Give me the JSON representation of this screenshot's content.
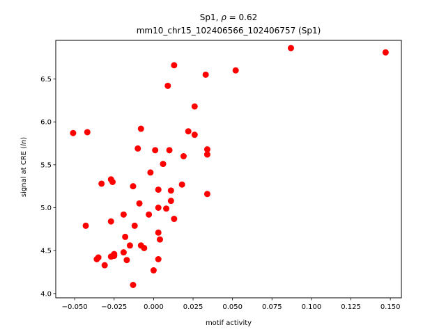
{
  "chart_data": {
    "type": "scatter",
    "title_line1": "Sp1, ",
    "title_rho": "ρ",
    "title_value": " = 0.62",
    "title_line2": "mm10_chr15_102406566_102406757 (Sp1)",
    "xlabel": "motif activity",
    "ylabel_prefix": "signal at CRE (",
    "ylabel_italic": "ln",
    "ylabel_suffix": ")",
    "xlim": [
      -0.062,
      0.157
    ],
    "ylim": [
      3.95,
      6.95
    ],
    "xticks": [
      -0.05,
      -0.025,
      0.0,
      0.025,
      0.05,
      0.075,
      0.1,
      0.125,
      0.15
    ],
    "xtick_labels": [
      "−0.050",
      "−0.025",
      "0.000",
      "0.025",
      "0.050",
      "0.075",
      "0.100",
      "0.125",
      "0.150"
    ],
    "yticks": [
      4.0,
      4.5,
      5.0,
      5.5,
      6.0,
      6.5
    ],
    "ytick_labels": [
      "4.0",
      "4.5",
      "5.0",
      "5.5",
      "6.0",
      "6.5"
    ],
    "marker_color": "#ff0000",
    "points": [
      {
        "x": -0.051,
        "y": 5.87
      },
      {
        "x": -0.042,
        "y": 5.88
      },
      {
        "x": -0.043,
        "y": 4.79
      },
      {
        "x": -0.036,
        "y": 4.4
      },
      {
        "x": -0.035,
        "y": 4.42
      },
      {
        "x": -0.033,
        "y": 5.28
      },
      {
        "x": -0.031,
        "y": 4.33
      },
      {
        "x": -0.027,
        "y": 5.33
      },
      {
        "x": -0.026,
        "y": 5.3
      },
      {
        "x": -0.027,
        "y": 4.84
      },
      {
        "x": -0.027,
        "y": 4.43
      },
      {
        "x": -0.025,
        "y": 4.44
      },
      {
        "x": -0.025,
        "y": 4.46
      },
      {
        "x": -0.019,
        "y": 4.48
      },
      {
        "x": -0.019,
        "y": 4.92
      },
      {
        "x": -0.018,
        "y": 4.66
      },
      {
        "x": -0.017,
        "y": 4.39
      },
      {
        "x": -0.015,
        "y": 4.56
      },
      {
        "x": -0.013,
        "y": 5.25
      },
      {
        "x": -0.013,
        "y": 4.1
      },
      {
        "x": -0.012,
        "y": 4.79
      },
      {
        "x": -0.01,
        "y": 5.69
      },
      {
        "x": -0.009,
        "y": 5.05
      },
      {
        "x": -0.008,
        "y": 5.92
      },
      {
        "x": -0.008,
        "y": 4.56
      },
      {
        "x": -0.006,
        "y": 4.53
      },
      {
        "x": -0.003,
        "y": 4.92
      },
      {
        "x": -0.002,
        "y": 5.41
      },
      {
        "x": 0.0,
        "y": 4.27
      },
      {
        "x": 0.001,
        "y": 5.67
      },
      {
        "x": 0.003,
        "y": 5.21
      },
      {
        "x": 0.003,
        "y": 5.0
      },
      {
        "x": 0.003,
        "y": 4.71
      },
      {
        "x": 0.003,
        "y": 4.4
      },
      {
        "x": 0.004,
        "y": 4.63
      },
      {
        "x": 0.006,
        "y": 5.51
      },
      {
        "x": 0.008,
        "y": 4.99
      },
      {
        "x": 0.009,
        "y": 6.42
      },
      {
        "x": 0.01,
        "y": 5.67
      },
      {
        "x": 0.011,
        "y": 5.2
      },
      {
        "x": 0.011,
        "y": 5.08
      },
      {
        "x": 0.013,
        "y": 6.66
      },
      {
        "x": 0.013,
        "y": 4.87
      },
      {
        "x": 0.018,
        "y": 5.27
      },
      {
        "x": 0.019,
        "y": 5.6
      },
      {
        "x": 0.022,
        "y": 5.89
      },
      {
        "x": 0.026,
        "y": 5.85
      },
      {
        "x": 0.026,
        "y": 6.18
      },
      {
        "x": 0.033,
        "y": 6.55
      },
      {
        "x": 0.034,
        "y": 5.68
      },
      {
        "x": 0.034,
        "y": 5.62
      },
      {
        "x": 0.034,
        "y": 5.16
      },
      {
        "x": 0.052,
        "y": 6.6
      },
      {
        "x": 0.087,
        "y": 6.86
      },
      {
        "x": 0.147,
        "y": 6.81
      }
    ]
  }
}
